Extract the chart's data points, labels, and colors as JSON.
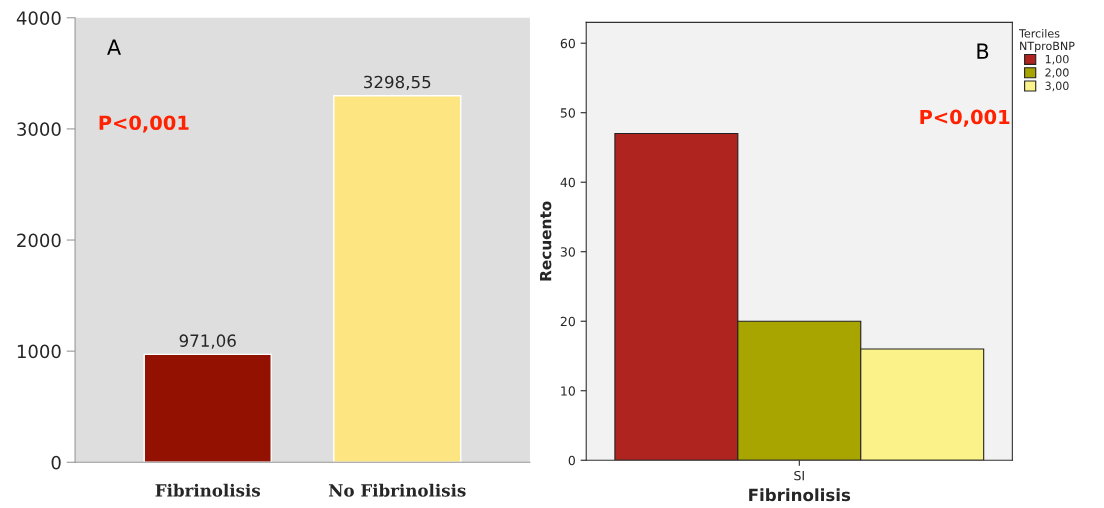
{
  "chart_data": [
    {
      "type": "bar",
      "categories": [
        "Fibrinolisis",
        "No Fibrinolisis"
      ],
      "values": [
        971.06,
        3298.55
      ],
      "colors": [
        "#921100",
        "#fde581"
      ],
      "value_labels": [
        "971,06",
        "3298,55"
      ],
      "ylim": [
        0,
        4000
      ],
      "yticks": [
        0,
        1000,
        2000,
        3000,
        4000
      ],
      "grid": false,
      "legend": false,
      "annotations": [
        "A",
        "P<0,001"
      ]
    },
    {
      "type": "bar",
      "categories": [
        "SI"
      ],
      "xlabel": "Fibrinolisis",
      "ylabel": "Recuento",
      "legend_title": "Terciles\nNTproBNP",
      "legend": "right",
      "series": [
        {
          "name": "1,00",
          "color": "#b02420",
          "values": [
            47
          ]
        },
        {
          "name": "2,00",
          "color": "#a8a400",
          "values": [
            20
          ]
        },
        {
          "name": "3,00",
          "color": "#fbf28a",
          "values": [
            16
          ]
        }
      ],
      "ylim": [
        0,
        63
      ],
      "yticks": [
        0,
        10,
        20,
        30,
        40,
        50,
        60
      ],
      "grid": false,
      "annotations": [
        "B",
        "P<0,001"
      ]
    }
  ]
}
